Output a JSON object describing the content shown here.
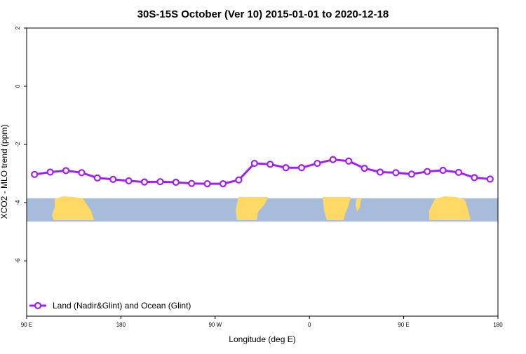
{
  "chart_data": {
    "type": "line",
    "title": "30S-15S October (Ver 10)   2015-01-01 to 2020-12-18",
    "xlabel": "Longitude (deg E)",
    "ylabel": "XCO2 - MLO trend (ppm)",
    "x_ticks": [
      {
        "value": 90,
        "label": "90 E"
      },
      {
        "value": 180,
        "label": "180"
      },
      {
        "value": 270,
        "label": "90 W"
      },
      {
        "value": 360,
        "label": "0"
      },
      {
        "value": 450,
        "label": "90 E"
      },
      {
        "value": 540,
        "label": "180"
      }
    ],
    "y_ticks": [
      2,
      0,
      -2,
      -4,
      -6
    ],
    "xlim": [
      90,
      540
    ],
    "ylim": [
      -7.9,
      2.0
    ],
    "grid": false,
    "legend_position": "bottom-left",
    "series": [
      {
        "name": "Land (Nadir&Glint) and Ocean (Glint)",
        "color": "#a020f0",
        "marker": "open-circle",
        "x": [
          97.5,
          112.5,
          127.5,
          142.5,
          157.5,
          172.5,
          187.5,
          202.5,
          217.5,
          232.5,
          247.5,
          262.5,
          277.5,
          292.5,
          307.5,
          322.5,
          337.5,
          352.5,
          367.5,
          382.5,
          397.5,
          412.5,
          427.5,
          442.5,
          457.5,
          472.5,
          487.5,
          502.5,
          517.5,
          532.5
        ],
        "y": [
          -3.03,
          -2.95,
          -2.9,
          -2.97,
          -3.15,
          -3.2,
          -3.25,
          -3.29,
          -3.28,
          -3.3,
          -3.34,
          -3.35,
          -3.35,
          -3.22,
          -2.65,
          -2.68,
          -2.8,
          -2.8,
          -2.65,
          -2.52,
          -2.57,
          -2.82,
          -2.95,
          -2.97,
          -3.02,
          -2.93,
          -2.89,
          -2.96,
          -3.14,
          -3.19
        ]
      }
    ],
    "map_strip": {
      "y_range": [
        -4.65,
        -3.85
      ],
      "land_color": "#ffd966",
      "ocean_color": "#a7bcda"
    }
  }
}
